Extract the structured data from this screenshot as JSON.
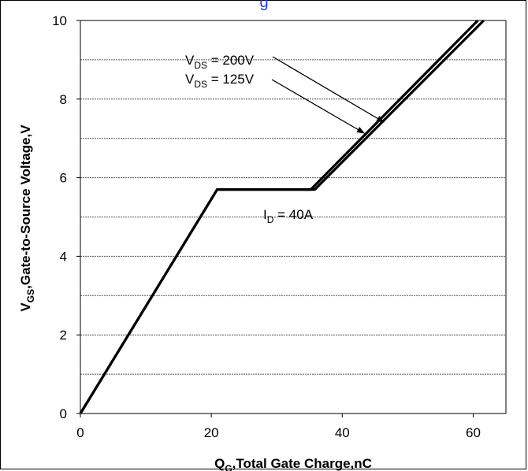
{
  "header": {
    "title_fragment": "g"
  },
  "chart_data": {
    "type": "line",
    "title": "",
    "xlabel": {
      "main": "Q",
      "sub": "G",
      "rest": ",Total Gate Charge,nC"
    },
    "ylabel": {
      "main": "V",
      "sub": "GS",
      "rest": ",Gate-to-Source Voltage,V"
    },
    "xlim": [
      0,
      65
    ],
    "ylim": [
      0,
      10
    ],
    "x_ticks": [
      "0",
      "20",
      "40",
      "60"
    ],
    "x_tick_values": [
      0,
      20,
      40,
      60
    ],
    "y_ticks": [
      "0",
      "2",
      "4",
      "6",
      "8",
      "10"
    ],
    "y_tick_values": [
      0,
      2,
      4,
      6,
      8,
      10
    ],
    "gridlines_y": [
      1,
      2,
      3,
      4,
      5,
      6,
      7,
      8,
      9,
      10
    ],
    "grid": "horizontal dashed",
    "series": [
      {
        "name": "VDS = 125V",
        "points": [
          [
            0,
            0
          ],
          [
            20.9,
            5.7
          ],
          [
            35.2,
            5.7
          ],
          [
            60.7,
            10
          ]
        ]
      },
      {
        "name": "VDS = 200V",
        "points": [
          [
            0,
            0
          ],
          [
            20.9,
            5.7
          ],
          [
            35.8,
            5.7
          ],
          [
            61.6,
            10
          ]
        ]
      }
    ],
    "annotations": [
      {
        "main": "V",
        "sub": "DS",
        "rest": " = 200V"
      },
      {
        "main": "V",
        "sub": "DS",
        "rest": " = 125V"
      },
      {
        "main": "I",
        "sub": "D",
        "rest": " = 40A"
      }
    ],
    "line_color": "#000000"
  }
}
